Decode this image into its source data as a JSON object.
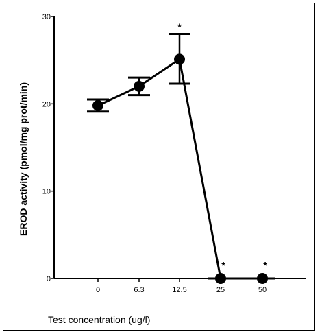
{
  "chart_data": {
    "type": "line",
    "title": "",
    "xlabel": "Test concentration (ug/l)",
    "ylabel": "EROD activity (pmol/mg prot/min)",
    "categories": [
      "0",
      "6.3",
      "12.5",
      "25",
      "50"
    ],
    "yticks": [
      "0",
      "10",
      "20",
      "30"
    ],
    "ylim": [
      0,
      30
    ],
    "grid": false,
    "legend": "none",
    "series": [
      {
        "values": [
          19.8,
          22.0,
          25.1,
          0.0,
          0.0
        ],
        "error_low": [
          19.1,
          21.0,
          22.3,
          0.0,
          0.0
        ],
        "error_high": [
          20.5,
          23.0,
          28.0,
          0.0,
          0.0
        ],
        "significance": [
          "",
          "",
          "*",
          "*",
          "*"
        ]
      }
    ],
    "color": "#000000"
  }
}
